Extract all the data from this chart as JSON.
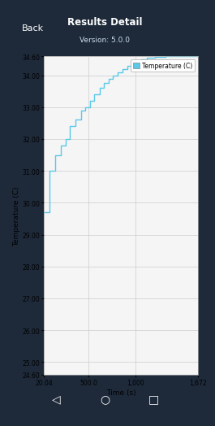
{
  "title": "Results Detail",
  "subtitle": "Version: 5.0.0",
  "xlabel": "Time (s)",
  "ylabel": "Temperature (C)",
  "legend_label": "Temperature (C)",
  "line_color": "#5bc8e8",
  "legend_box_color": "#5bc8e8",
  "plot_bg_color": "#f5f5f5",
  "header_bg_color": "#2a3a52",
  "footer_bg_color": "#1e2a3a",
  "fig_bg_color": "#1e2a3a",
  "grid_color": "#cccccc",
  "xlim": [
    20.04,
    1672
  ],
  "ylim": [
    24.6,
    34.6
  ],
  "xticks": [
    20.04,
    500.0,
    1000,
    1672
  ],
  "xtick_labels": [
    "20.04",
    "500.0",
    "1,000",
    "1,672"
  ],
  "yticks": [
    24.6,
    25.0,
    26.0,
    27.0,
    28.0,
    29.0,
    30.0,
    31.0,
    32.0,
    33.0,
    34.0,
    34.6
  ],
  "ytick_labels": [
    "24.60",
    "25.00",
    "26.00",
    "27.00",
    "28.00",
    "29.00",
    "30.00",
    "31.00",
    "32.00",
    "33.00",
    "34.00",
    "34.60"
  ],
  "time_pts": [
    20.04,
    80,
    80,
    140,
    140,
    200,
    200,
    250,
    250,
    295,
    295,
    360,
    360,
    420,
    420,
    460,
    460,
    510,
    510,
    560,
    560,
    620,
    620,
    665,
    665,
    710,
    710,
    760,
    760,
    810,
    810,
    860,
    860,
    910,
    910,
    960,
    960,
    1010,
    1010,
    1060,
    1060,
    1120,
    1120,
    1210,
    1210,
    1320,
    1320,
    1672
  ],
  "temp_pts": [
    29.7,
    29.7,
    31.0,
    31.0,
    31.5,
    31.5,
    31.8,
    31.8,
    32.0,
    32.0,
    32.4,
    32.4,
    32.6,
    32.6,
    32.9,
    32.9,
    33.0,
    33.0,
    33.2,
    33.2,
    33.4,
    33.4,
    33.6,
    33.6,
    33.75,
    33.75,
    33.9,
    33.9,
    34.0,
    34.0,
    34.1,
    34.1,
    34.2,
    34.2,
    34.3,
    34.3,
    34.4,
    34.4,
    34.45,
    34.45,
    34.5,
    34.5,
    34.55,
    34.55,
    34.58,
    34.58,
    34.6,
    34.6
  ]
}
